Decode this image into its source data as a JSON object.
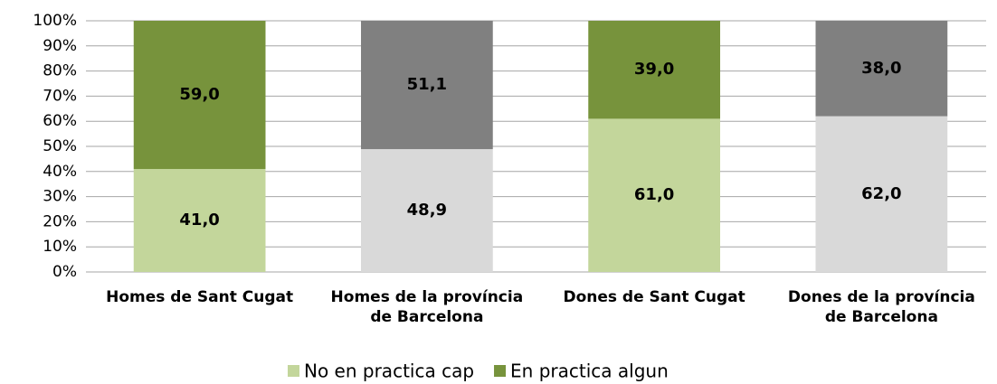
{
  "chart_data": {
    "type": "stacked_bar",
    "categories": [
      "Homes de Sant Cugat",
      "Homes de la província de Barcelona",
      "Dones de Sant Cugat",
      "Dones de la província de Barcelona"
    ],
    "series": [
      {
        "name": "No en practica cap",
        "color": "#c3d69b",
        "colors": [
          "#c3d69b",
          "#d9d9d9",
          "#c3d69b",
          "#d9d9d9"
        ],
        "values": [
          41.0,
          48.9,
          61.0,
          62.0
        ],
        "value_labels": [
          "41,0",
          "48,9",
          "61,0",
          "62,0"
        ]
      },
      {
        "name": "En practica algun",
        "color": "#77933c",
        "colors": [
          "#77933c",
          "#808080",
          "#77933c",
          "#808080"
        ],
        "values": [
          59.0,
          51.1,
          39.0,
          38.0
        ],
        "value_labels": [
          "59,0",
          "51,1",
          "39,0",
          "38,0"
        ]
      }
    ],
    "ylim": [
      0,
      100
    ],
    "yticks": [
      {
        "value": 0,
        "label": "0%"
      },
      {
        "value": 10,
        "label": "10%"
      },
      {
        "value": 20,
        "label": "20%"
      },
      {
        "value": 30,
        "label": "30%"
      },
      {
        "value": 40,
        "label": "40%"
      },
      {
        "value": 50,
        "label": "50%"
      },
      {
        "value": 60,
        "label": "60%"
      },
      {
        "value": 70,
        "label": "70%"
      },
      {
        "value": 80,
        "label": "80%"
      },
      {
        "value": 90,
        "label": "90%"
      },
      {
        "value": 100,
        "label": "100%"
      }
    ],
    "grid": true,
    "legend": "bottom"
  }
}
